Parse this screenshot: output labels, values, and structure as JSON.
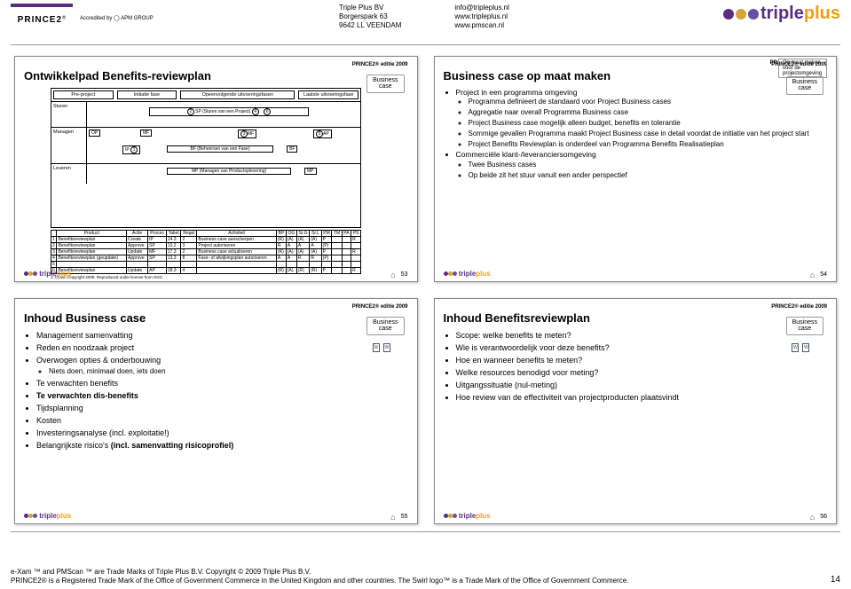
{
  "header": {
    "company_lines": [
      "Triple Plus BV",
      "Borgerspark 63",
      "9642 LL  VEENDAM"
    ],
    "contact_lines": [
      "info@tripleplus.nl",
      "www.tripleplus.nl",
      "www.pmscan.nl"
    ],
    "prince_name": "PRINCE2",
    "prince_reg": "®",
    "apm_text": "Accredited by ◯ APM GROUP",
    "logo_text_a": "triple",
    "logo_text_b": "plus",
    "dot_colors": [
      "#5a2d82",
      "#d4a437",
      "#6b4ea0"
    ]
  },
  "slide1": {
    "edition": "PRINCE2® editie 2009",
    "title": "Ontwikkelpad Benefits-reviewplan",
    "bc_label": "Business\ncase",
    "phases": [
      "Pre-project",
      "Initiatie fase",
      "Opeenvolgende uitvoeringsfasen",
      "Laatste uitvoeringsfase"
    ],
    "swimlanes": [
      "Sturen",
      "Managen",
      "Leveren"
    ],
    "nodes": {
      "sp": "SP (Sturen van een Project)",
      "bf": "BF (Beheersen van een Fase)",
      "mp": "MP (Managen van Productoplevering)",
      "op": "OP",
      "ip": "IP",
      "mf1": "MF",
      "mf2": "MF",
      "ap": "AP",
      "bf2": "BF",
      "circles": [
        "1",
        "2",
        "3",
        "4",
        "5",
        "6"
      ]
    },
    "table": {
      "headers": [
        "",
        "Product",
        "Actie",
        "Proces",
        "Tabel",
        "Regel",
        "Activiteit",
        "BP",
        "OG",
        "Sr.G",
        "Sr.L",
        "PM",
        "TM",
        "PA",
        "PS"
      ],
      "rows": [
        [
          "1",
          "Benefitsreviewplan",
          "Create",
          "IP",
          "14.3",
          "2",
          "Business case aanscherpen",
          "(R)",
          "(A)",
          "(A)",
          "(A)",
          "P",
          "",
          "",
          "R"
        ],
        [
          "2",
          "Benefitsreviewplan",
          "Approve",
          "SP",
          "13.2",
          "3",
          "Project autoriseren",
          "R",
          "A",
          "A",
          "A",
          "(P)",
          "",
          "",
          ""
        ],
        [
          "3",
          "Benefitsreviewplan",
          "Update",
          "MF",
          "17.3",
          "2",
          "Business case actualiseren",
          "(R)",
          "(A)",
          "(A)",
          "(A)",
          "P",
          "",
          "",
          "R"
        ],
        [
          "4",
          "Benefitsreviewplan (geupdate)",
          "Approve",
          "SP",
          "13.3",
          "8",
          "Fase- of afwijkingsplan autoriseren",
          "A",
          "A",
          "R",
          "R",
          "(P)",
          "",
          "",
          ""
        ],
        [
          "5",
          "",
          "",
          "",
          "",
          "",
          "",
          "",
          "",
          "",
          "",
          "",
          "",
          "",
          ""
        ],
        [
          "6",
          "Benefitsreviewplan",
          "Update",
          "AP",
          "18.3",
          "4",
          "",
          "(R)",
          "(A)",
          "(R)",
          "(R)",
          "P",
          "",
          "",
          "R"
        ]
      ],
      "footer_note": "© Crown Copyright 2009. Reproduced under license from OGC."
    },
    "pagenum": "53"
  },
  "slide2": {
    "edition": "PRINCE2® editie 2009",
    "corner_tag": "Op maat maken voor de projectomgeving",
    "pr_corner": "PR",
    "title": "Business case op maat maken",
    "bc_label": "Business\ncase",
    "bullets": [
      {
        "t": "Project in een programma omgeving",
        "sub": [
          "Programma definieert de standaard voor Project Business cases",
          "Aggregatie naar overall Programma Business case",
          "Project Business case mogelijk alleen budget, benefits en tolerantie",
          "Sommige gevallen Programma maakt Project Business case in detail voordat de initiatie van het project start",
          "Project Benefits Reviewplan is onderdeel van Programma Benefits Realisatieplan"
        ]
      },
      {
        "t": "Commerciële klant-/leveranciersomgeving",
        "sub": [
          "Twee Business cases",
          "Op beide zit het stuur vanuit een ander perspectief"
        ]
      }
    ],
    "pagenum": "54"
  },
  "slide3": {
    "edition": "PRINCE2® editie 2009",
    "title": "Inhoud Business case",
    "bc_label": "Business\ncase",
    "bullets": [
      {
        "t": "Management samenvatting"
      },
      {
        "t": "Reden en noodzaak project"
      },
      {
        "t": "Overwogen opties & onderbouwing",
        "sub": [
          "Niets doen, minimaal doen, iets doen"
        ]
      },
      {
        "t": "Te verwachten benefits"
      },
      {
        "t": "Te verwachten dis-benefits",
        "bold": true
      },
      {
        "t": "Tijdsplanning"
      },
      {
        "t": "Kosten"
      },
      {
        "t": "Investeringsanalyse (incl. exploitatie!)"
      },
      {
        "t": "Belangrijkste risico's (incl. samenvatting risicoprofiel)",
        "halfbold": true
      }
    ],
    "pagenum": "55"
  },
  "slide4": {
    "edition": "PRINCE2® editie 2009",
    "title": "Inhoud Benefitsreviewplan",
    "bc_label": "Business\ncase",
    "bullets": [
      "Scope: welke benefits te meten?",
      "Wie is verantwoordelijk voor deze benefits?",
      "Hoe en wanneer benefits te meten?",
      "Welke resources benodigd voor meting?",
      "Uitgangssituatie (nul-meting)",
      "Hoe review van de effectiviteit van projectproducten plaatsvindt"
    ],
    "pagenum": "56"
  },
  "page_number": "14",
  "footer": {
    "line1": "e-Xam ™ and PMScan ™ are Trade Marks of Triple Plus B.V.  Copyright © 2009 Triple Plus B.V.",
    "line2": "PRINCE2® is a Registered Trade Mark of the Office of Government Commerce in the United Kingdom and other countries. The Swirl logo™ is a Trade Mark of the Office of Government Commerce."
  },
  "colors": {
    "purple": "#5a2d82",
    "amber": "#f59e0b",
    "border": "#888888"
  }
}
